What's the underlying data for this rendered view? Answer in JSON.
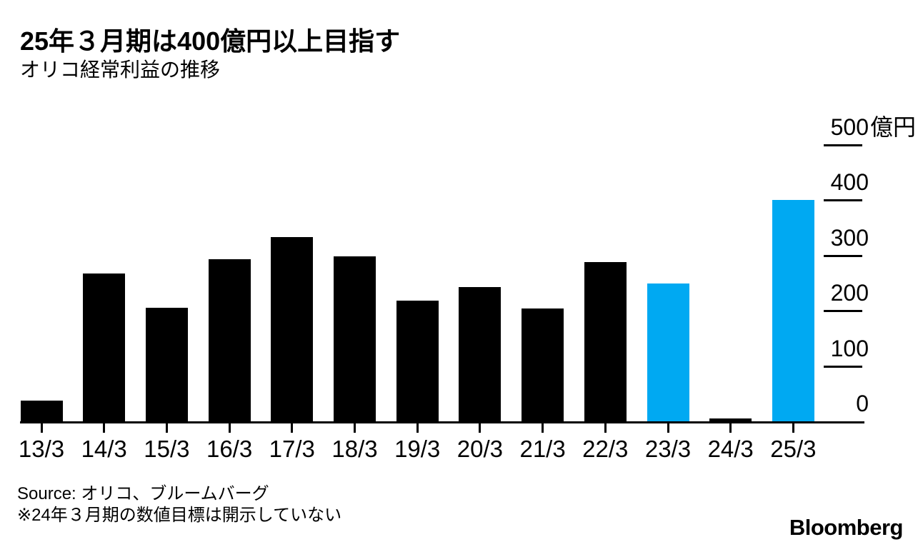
{
  "branding": {
    "logo": "Bloomberg"
  },
  "footer": {
    "source": "Source: オリコ、ブルームバーグ",
    "note": "※24年３月期の数値目標は開示していない"
  },
  "chart_data": {
    "type": "bar",
    "title": "25年３月期は400億円以上目指す",
    "subtitle": "オリコ経常利益の推移",
    "categories": [
      "13/3",
      "14/3",
      "15/3",
      "16/3",
      "17/3",
      "18/3",
      "19/3",
      "20/3",
      "21/3",
      "22/3",
      "23/3",
      "24/3",
      "25/3"
    ],
    "values": [
      38,
      267,
      205,
      293,
      333,
      298,
      218,
      243,
      204,
      288,
      249,
      0,
      400
    ],
    "unit_suffix": "億円",
    "unit_suffix_on_tick": 500,
    "yticks": [
      0,
      100,
      200,
      300,
      400,
      500
    ],
    "ylim": [
      0,
      500
    ],
    "y_axis_side": "right",
    "grid": false,
    "legend": false,
    "highlight_indices": [
      10,
      12
    ],
    "undisclosed_index": 11,
    "colors": {
      "bar_default": "#000000",
      "bar_highlight": "#00a9f2",
      "axis": "#000000"
    }
  }
}
